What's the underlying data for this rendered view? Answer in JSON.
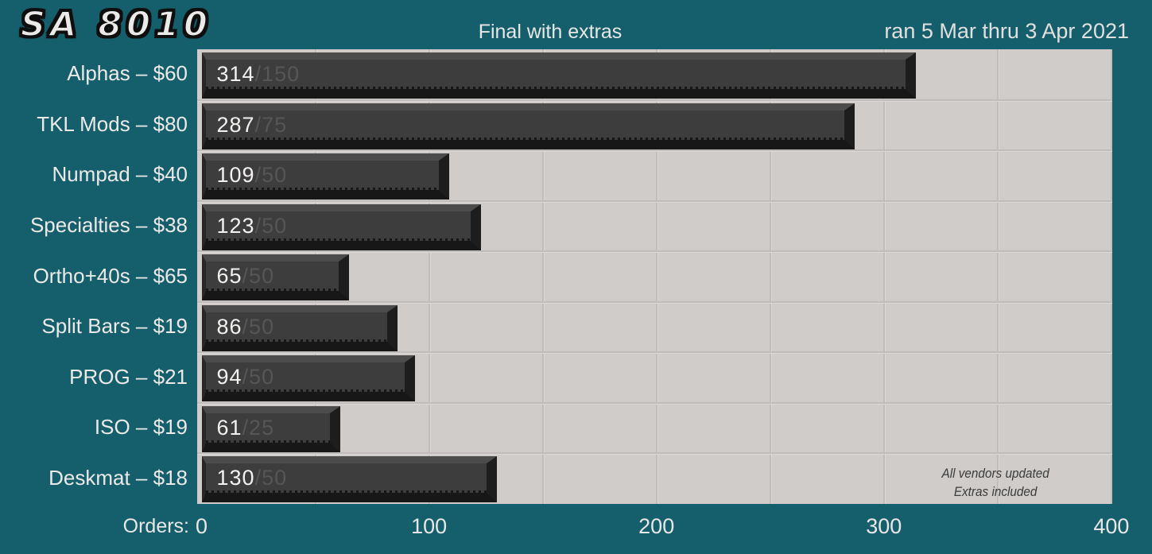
{
  "header": {
    "logo": "SA 8010",
    "title": "Final with extras",
    "date_range": "ran 5 Mar thru 3 Apr 2021"
  },
  "axis": {
    "label": "Orders:",
    "ticks": [
      0,
      100,
      200,
      300,
      400
    ]
  },
  "note": {
    "line1": "All vendors updated",
    "line2": "Extras included"
  },
  "chart_data": {
    "type": "bar",
    "orientation": "horizontal",
    "title": "Final with extras",
    "subtitle": "ran 5 Mar thru 3 Apr 2021",
    "xlabel": "Orders:",
    "xlim": [
      0,
      400
    ],
    "x_ticks": [
      0,
      100,
      200,
      300,
      400
    ],
    "gridline_step": 50,
    "grid": true,
    "categories": [
      "Alphas – $60",
      "TKL Mods – $80",
      "Numpad – $40",
      "Specialties – $38",
      "Ortho+40s – $65",
      "Split Bars – $19",
      "PROG – $21",
      "ISO – $19",
      "Deskmat – $18"
    ],
    "series": [
      {
        "name": "orders",
        "values": [
          314,
          287,
          109,
          123,
          65,
          86,
          94,
          61,
          130
        ]
      },
      {
        "name": "moq",
        "values": [
          150,
          75,
          50,
          50,
          50,
          50,
          50,
          25,
          50
        ]
      }
    ],
    "bar_label_format": "orders/moq",
    "annotations": [
      "All vendors updated",
      "Extras included"
    ],
    "legend": false
  },
  "colors": {
    "background": "#155f6d",
    "plot_background": "#cfccca",
    "bar_face": "#3d3d3d",
    "bar_top_bevel": "#4c4c4c",
    "bar_dark_bevel": "#171717",
    "bar_value_text": "#f4f2f0",
    "bar_moq_text": "#565656",
    "gridline": "#c0bdbc",
    "label_text": "#ece9e7",
    "note_text": "#3b3b3b"
  }
}
